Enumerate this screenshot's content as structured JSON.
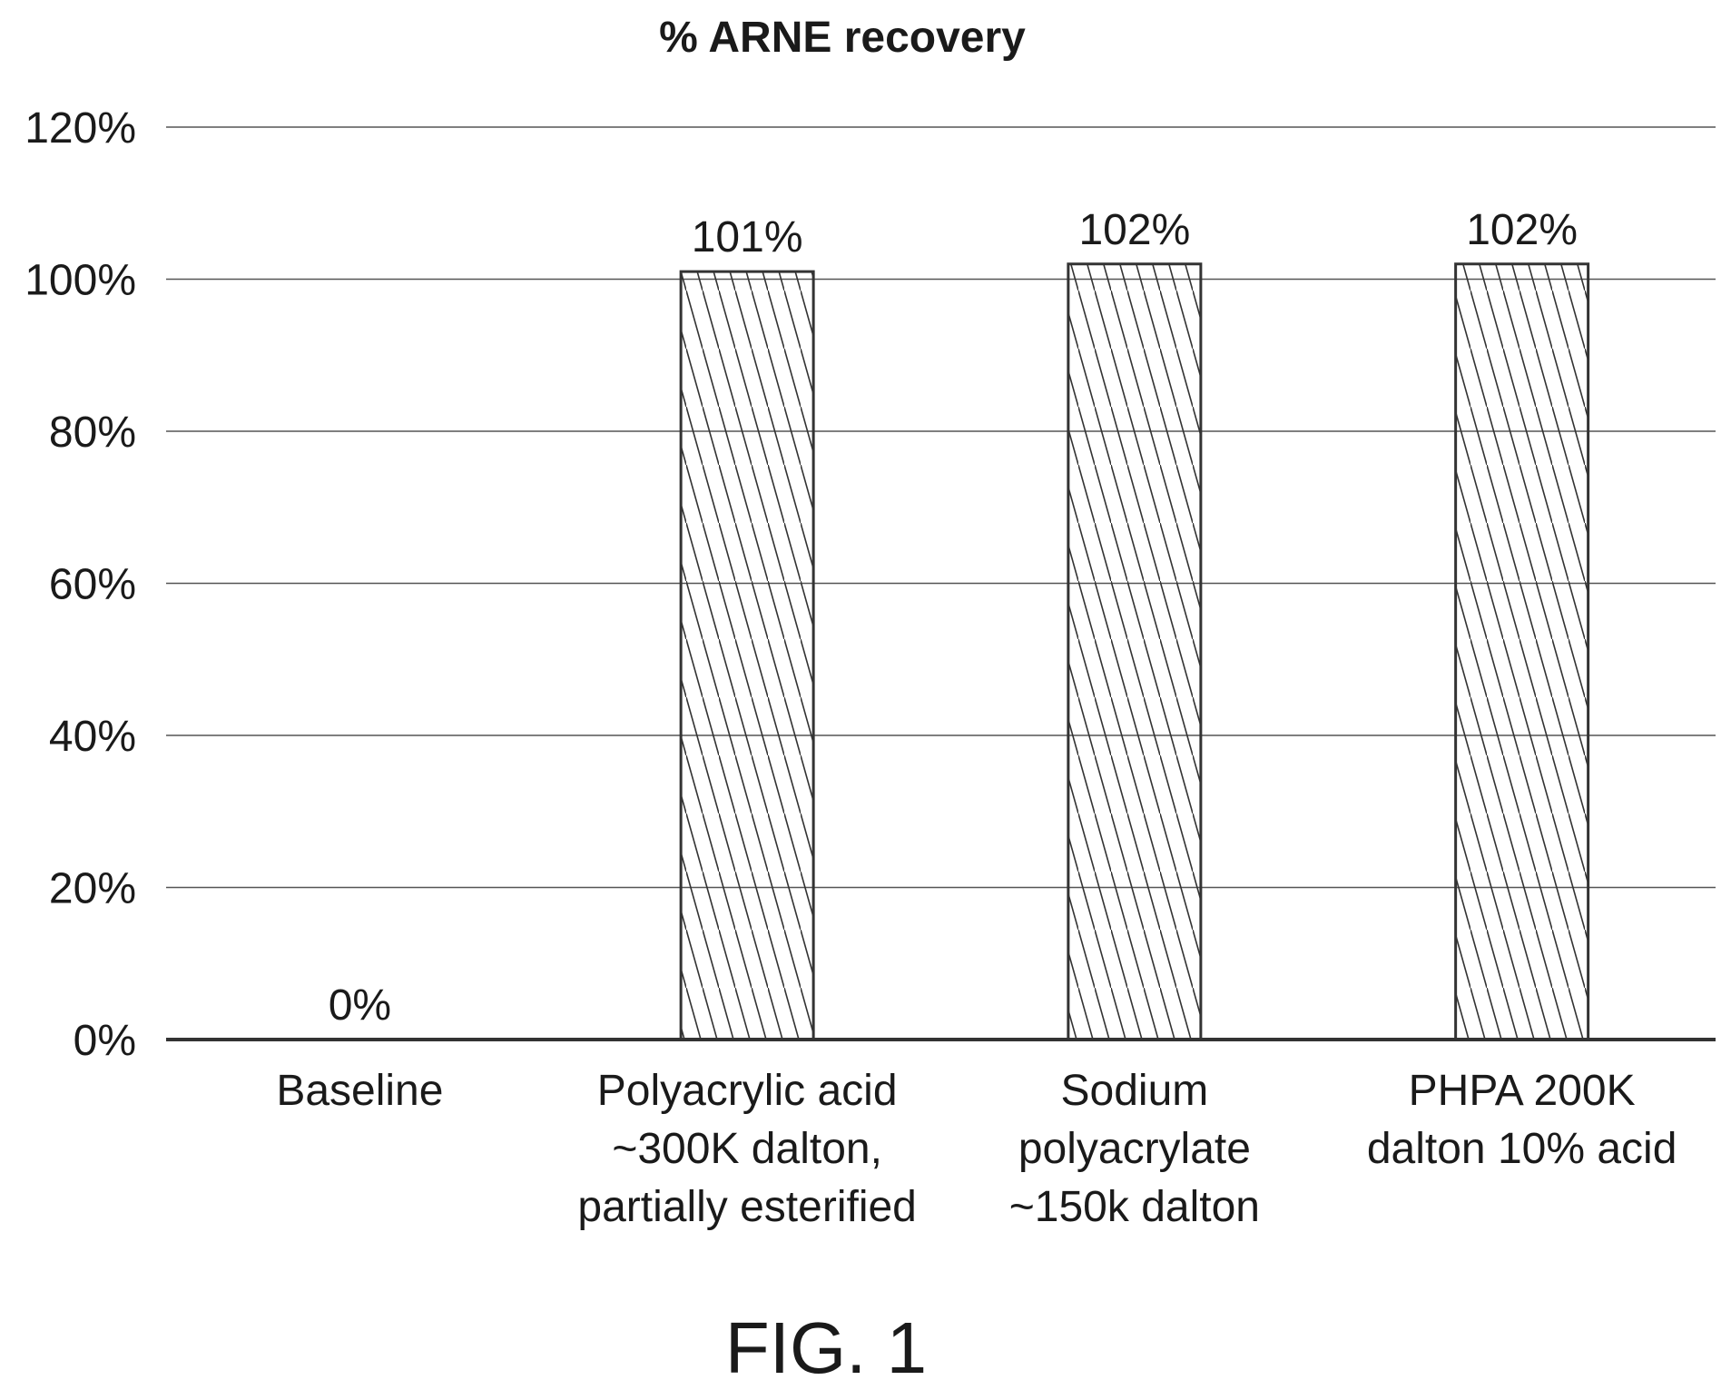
{
  "chart_data": {
    "type": "bar",
    "title": "% ARNE recovery",
    "xlabel": "",
    "ylabel": "",
    "categories": [
      [
        "Baseline"
      ],
      [
        "Polyacrylic acid",
        "~300K dalton,",
        "partially esterified"
      ],
      [
        "Sodium",
        "polyacrylate",
        "~150k dalton"
      ],
      [
        "PHPA 200K",
        "dalton 10% acid"
      ]
    ],
    "values": [
      0,
      101,
      102,
      102
    ],
    "data_labels": [
      "0%",
      "101%",
      "102%",
      "102%"
    ],
    "ylim": [
      0,
      120
    ],
    "yticks": [
      0,
      20,
      40,
      60,
      80,
      100,
      120
    ],
    "ytick_labels": [
      "0%",
      "20%",
      "40%",
      "60%",
      "80%",
      "100%",
      "120%"
    ],
    "grid": true,
    "legend": "none",
    "bar_fill": "hatched",
    "colors": {
      "text": "#1a1a1a",
      "bar_outline": "#333333",
      "hatch": "#333333",
      "grid": "#555555",
      "axis": "#333333"
    }
  },
  "figure_caption": "FIG. 1"
}
